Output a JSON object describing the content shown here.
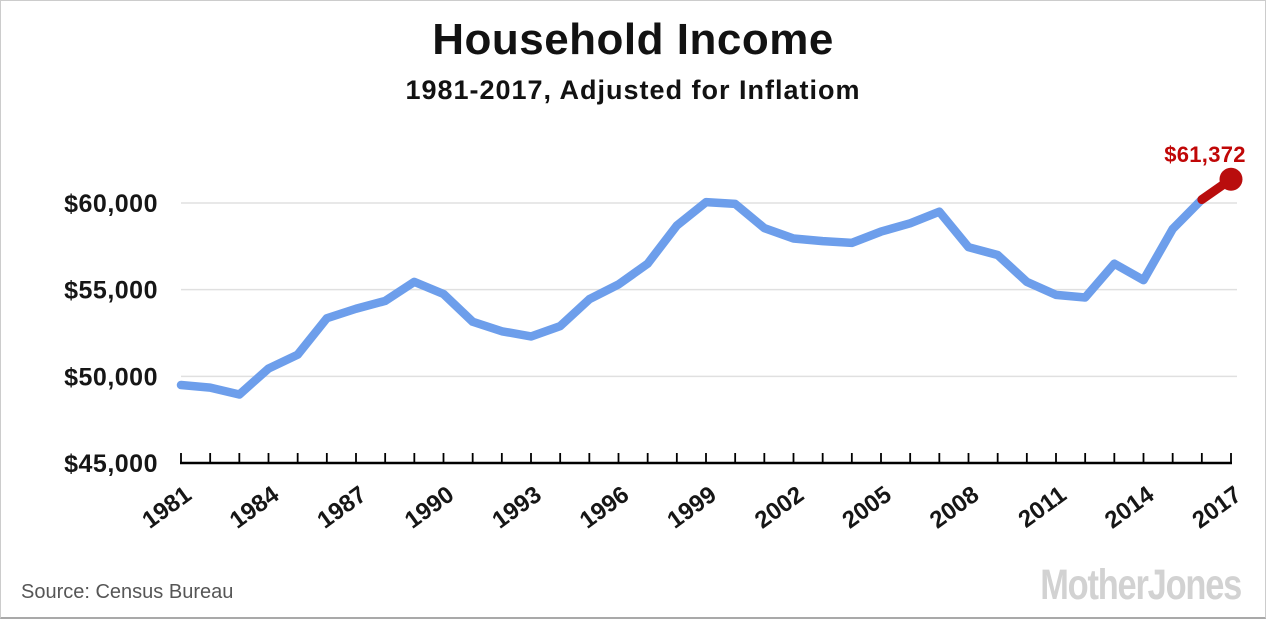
{
  "title": "Household Income",
  "subtitle": "1981-2017, Adjusted for Inflatiom",
  "footer": {
    "source": "Source: Census Bureau",
    "logo": "MotherJones"
  },
  "colors": {
    "line": "#6d9eeb",
    "highlight": "#b90d0d",
    "annotation_text": "#c00707",
    "grid": "#e0e0e0",
    "axis": "#000000",
    "tick_label": "#161616"
  },
  "chart_data": {
    "type": "line",
    "title": "Household Income",
    "subtitle": "1981-2017, Adjusted for Inflatiom",
    "xlabel": "",
    "ylabel": "",
    "grid": "horizontal",
    "legend": "none",
    "ylim": [
      45000,
      62000
    ],
    "y_ticks": [
      45000,
      50000,
      55000,
      60000
    ],
    "y_tick_labels": [
      "$45,000",
      "$50,000",
      "$55,000",
      "$60,000"
    ],
    "x_label_years": [
      1981,
      1984,
      1987,
      1990,
      1993,
      1996,
      1999,
      2002,
      2005,
      2008,
      2011,
      2014,
      2017
    ],
    "x": [
      1981,
      1982,
      1983,
      1984,
      1985,
      1986,
      1987,
      1988,
      1989,
      1990,
      1991,
      1992,
      1993,
      1994,
      1995,
      1996,
      1997,
      1998,
      1999,
      2000,
      2001,
      2002,
      2003,
      2004,
      2005,
      2006,
      2007,
      2008,
      2009,
      2010,
      2011,
      2012,
      2013,
      2014,
      2015,
      2016,
      2017
    ],
    "values": [
      49500,
      49350,
      48950,
      50450,
      51250,
      53350,
      53900,
      54350,
      55450,
      54750,
      53150,
      52600,
      52300,
      52900,
      54450,
      55300,
      56500,
      58700,
      60050,
      59950,
      58550,
      57950,
      57800,
      57700,
      58350,
      58830,
      59500,
      57450,
      57000,
      55450,
      54700,
      54550,
      56500,
      55550,
      58500,
      60200,
      61372
    ],
    "highlight_segment_start_year": 2016,
    "final_point": {
      "year": 2017,
      "value": 61372,
      "label": "$61,372"
    }
  }
}
